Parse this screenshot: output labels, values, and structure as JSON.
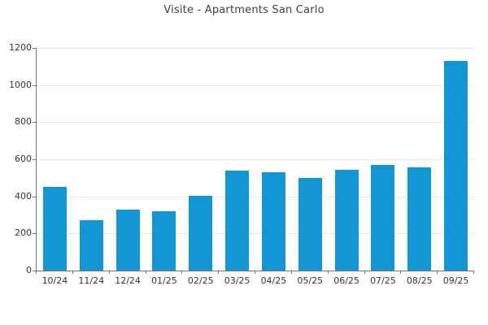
{
  "page": {
    "background": "#ffffff"
  },
  "chart_data": {
    "type": "bar",
    "title": "Visite - Apartments San Carlo",
    "categories": [
      "10/24",
      "11/24",
      "12/24",
      "01/25",
      "02/25",
      "03/25",
      "04/25",
      "05/25",
      "06/25",
      "07/25",
      "08/25",
      "09/25"
    ],
    "values": [
      450,
      270,
      330,
      320,
      405,
      540,
      530,
      500,
      545,
      570,
      555,
      1130
    ],
    "xlabel": "",
    "ylabel": "",
    "ylim": [
      0,
      1200
    ],
    "yticks": [
      0,
      200,
      400,
      600,
      800,
      1000,
      1200
    ],
    "grid": "horizontal-only",
    "legend": "none",
    "colors": {
      "bar": "#1296d4",
      "grid": "#e6e6e6",
      "axis": "#737373",
      "tick_label": "#333333",
      "title": "#3f3f3f"
    }
  }
}
